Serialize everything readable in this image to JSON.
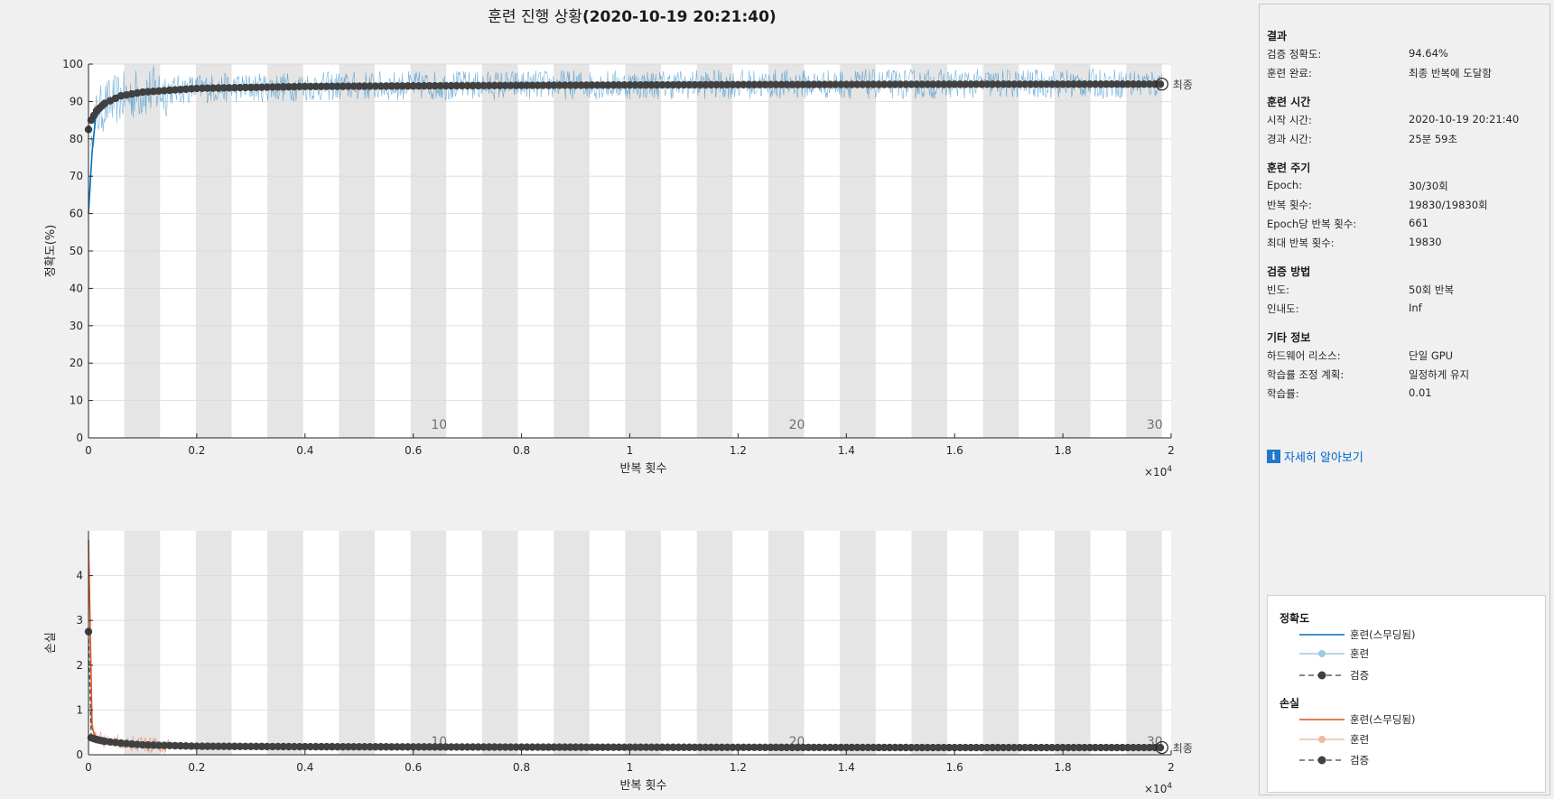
{
  "title": {
    "prefix": "훈련 진행 상황",
    "time": "(2020-10-19 20:21:40)"
  },
  "colors": {
    "accuracy": "#0072bd",
    "accuracy_raw": "#9ecae1",
    "loss": "#d95319",
    "loss_raw": "#f2b8a0",
    "validation": "#404040",
    "stripe": "#e5e5e5"
  },
  "final_label": "최종",
  "exponent_label": "×10",
  "exponent_sup": "4",
  "chart_data": [
    {
      "type": "line",
      "ylabel": "정확도(%)",
      "xlabel": "반복 횟수",
      "xlim": [
        0,
        20000
      ],
      "ylim": [
        0,
        100
      ],
      "x_ticks": [
        0,
        0.2,
        0.4,
        0.6,
        0.8,
        1,
        1.2,
        1.4,
        1.6,
        1.8,
        2
      ],
      "y_ticks": [
        0,
        10,
        20,
        30,
        40,
        50,
        60,
        70,
        80,
        90,
        100
      ],
      "epoch_labels": [
        {
          "epoch": 10,
          "x": 6610
        },
        {
          "epoch": 20,
          "x": 13220
        },
        {
          "epoch": 30,
          "x": 19830
        }
      ],
      "series": [
        {
          "name": "훈련(스무딩됨)",
          "x": [
            0,
            100,
            300,
            600,
            1000,
            2000,
            4000,
            8000,
            12000,
            16000,
            19830
          ],
          "values": [
            60,
            85,
            89,
            91,
            92.5,
            93.5,
            94,
            94.4,
            94.6,
            94.7,
            94.8
          ]
        },
        {
          "name": "검증",
          "x": [
            0,
            50,
            150,
            300,
            600,
            1000,
            2000,
            4000,
            8000,
            12000,
            16000,
            19830
          ],
          "values": [
            82.5,
            85,
            87.5,
            89.5,
            91.5,
            92.5,
            93.5,
            94,
            94.3,
            94.5,
            94.6,
            94.64
          ]
        }
      ]
    },
    {
      "type": "line",
      "ylabel": "손실",
      "xlabel": "반복 횟수",
      "xlim": [
        0,
        20000
      ],
      "ylim": [
        0,
        5
      ],
      "x_ticks": [
        0,
        0.2,
        0.4,
        0.6,
        0.8,
        1,
        1.2,
        1.4,
        1.6,
        1.8,
        2
      ],
      "y_ticks": [
        0,
        1,
        2,
        3,
        4
      ],
      "epoch_labels": [
        {
          "epoch": 10,
          "x": 6610
        },
        {
          "epoch": 20,
          "x": 13220
        },
        {
          "epoch": 30,
          "x": 19830
        }
      ],
      "series": [
        {
          "name": "훈련(스무딩됨)",
          "x": [
            0,
            20,
            50,
            100,
            300,
            600,
            1000,
            2000,
            4000,
            8000,
            12000,
            16000,
            19830
          ],
          "values": [
            4.8,
            1.5,
            0.7,
            0.4,
            0.33,
            0.27,
            0.22,
            0.19,
            0.18,
            0.17,
            0.165,
            0.16,
            0.16
          ]
        },
        {
          "name": "검증",
          "x": [
            0,
            50,
            150,
            300,
            600,
            1000,
            2000,
            4000,
            8000,
            12000,
            16000,
            19830
          ],
          "values": [
            2.75,
            0.38,
            0.34,
            0.3,
            0.26,
            0.22,
            0.19,
            0.18,
            0.17,
            0.165,
            0.16,
            0.16
          ]
        }
      ]
    }
  ],
  "panel": {
    "sections": [
      {
        "title": "결과",
        "rows": [
          {
            "label": "검증 정확도:",
            "value": "94.64%"
          },
          {
            "label": "훈련 완료:",
            "value": "최종 반복에 도달함"
          }
        ]
      },
      {
        "title": "훈련 시간",
        "rows": [
          {
            "label": "시작 시간:",
            "value": "2020-10-19 20:21:40"
          },
          {
            "label": "경과 시간:",
            "value": "25분 59초"
          }
        ]
      },
      {
        "title": "훈련 주기",
        "rows": [
          {
            "label": "Epoch:",
            "value": "30/30회"
          },
          {
            "label": "반복 횟수:",
            "value": "19830/19830회"
          },
          {
            "label": "Epoch당 반복 횟수:",
            "value": "661"
          },
          {
            "label": "최대 반복 횟수:",
            "value": "19830"
          }
        ]
      },
      {
        "title": "검증 방법",
        "rows": [
          {
            "label": "빈도:",
            "value": "50회 반복"
          },
          {
            "label": "인내도:",
            "value": "Inf"
          }
        ]
      },
      {
        "title": "기타 정보",
        "rows": [
          {
            "label": "하드웨어 리소스:",
            "value": "단일 GPU"
          },
          {
            "label": "학습률 조정 계획:",
            "value": "일정하게 유지"
          },
          {
            "label": "학습률:",
            "value": "0.01"
          }
        ]
      }
    ],
    "learn_more": "자세히 알아보기",
    "learn_icon": "info-icon"
  },
  "legend": {
    "accuracy_title": "정확도",
    "loss_title": "손실",
    "smoothed": "훈련(스무딩됨)",
    "train": "훈련",
    "validation": "검증"
  }
}
